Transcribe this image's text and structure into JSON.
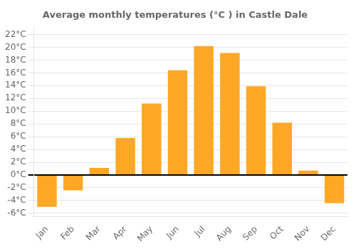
{
  "chart_data": {
    "type": "bar",
    "title": "Average monthly temperatures (°C ) in Castle Dale",
    "categories": [
      "Jan",
      "Feb",
      "Mar",
      "Apr",
      "May",
      "Jun",
      "Jul",
      "Aug",
      "Sep",
      "Oct",
      "Nov",
      "Dec"
    ],
    "values": [
      -5.0,
      -2.4,
      1.1,
      5.8,
      11.2,
      16.4,
      20.2,
      19.1,
      13.9,
      8.2,
      0.7,
      -4.4
    ],
    "color": "#FFA726",
    "ylim": [
      -6.5,
      23
    ],
    "yticks": [
      {
        "value": -6,
        "label": "-6°C"
      },
      {
        "value": -4,
        "label": "-4°C"
      },
      {
        "value": -2,
        "label": "-2°C"
      },
      {
        "value": 0,
        "label": "0°C"
      },
      {
        "value": 2,
        "label": "2°C"
      },
      {
        "value": 4,
        "label": "4°C"
      },
      {
        "value": 6,
        "label": "6°C"
      },
      {
        "value": 8,
        "label": "8°C"
      },
      {
        "value": 10,
        "label": "10°C"
      },
      {
        "value": 12,
        "label": "12°C"
      },
      {
        "value": 14,
        "label": "14°C"
      },
      {
        "value": 16,
        "label": "16°C"
      },
      {
        "value": 18,
        "label": "18°C"
      },
      {
        "value": 20,
        "label": "20°C"
      },
      {
        "value": 22,
        "label": "22°C"
      }
    ],
    "grid": true
  }
}
